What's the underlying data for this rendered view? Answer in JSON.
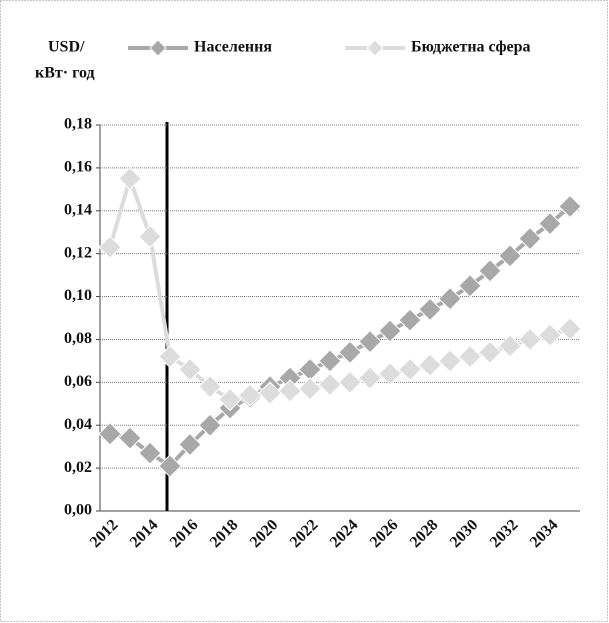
{
  "chart_data": {
    "type": "line",
    "y_label": [
      "USD/",
      "кВт· год"
    ],
    "categories": [
      "2012",
      null,
      "2014",
      null,
      "2016",
      null,
      "2018",
      null,
      "2020",
      null,
      "2022",
      null,
      "2024",
      null,
      "2026",
      null,
      "2028",
      null,
      "2030",
      null,
      "2032",
      null,
      "2034",
      null
    ],
    "series": [
      {
        "name": "Населення",
        "color": "#a8a8a8",
        "values": [
          0.036,
          0.034,
          0.027,
          0.021,
          0.031,
          0.04,
          0.048,
          0.053,
          0.058,
          0.062,
          0.066,
          0.07,
          0.074,
          0.079,
          0.084,
          0.089,
          0.094,
          0.099,
          0.105,
          0.112,
          0.119,
          0.127,
          0.134,
          0.142
        ]
      },
      {
        "name": "Бюджетна сфера",
        "color": "#dcdcdc",
        "values": [
          0.123,
          0.155,
          0.128,
          0.072,
          0.066,
          0.058,
          0.052,
          0.054,
          0.055,
          0.056,
          0.057,
          0.059,
          0.06,
          0.062,
          0.064,
          0.066,
          0.068,
          0.07,
          0.072,
          0.074,
          0.077,
          0.08,
          0.082,
          0.085
        ]
      }
    ],
    "ylim": [
      0,
      0.18
    ],
    "yticks": [
      {
        "value": 0,
        "label": "0,00"
      },
      {
        "value": 0.02,
        "label": "0,02"
      },
      {
        "value": 0.04,
        "label": "0,04"
      },
      {
        "value": 0.06,
        "label": "0,06"
      },
      {
        "value": 0.08,
        "label": "0,08"
      },
      {
        "value": 0.1,
        "label": "0,10"
      },
      {
        "value": 0.12,
        "label": "0,12"
      },
      {
        "value": 0.14,
        "label": "0,14"
      },
      {
        "value": 0.16,
        "label": "0,16"
      },
      {
        "value": 0.18,
        "label": "0,18"
      }
    ],
    "grid": true
  }
}
